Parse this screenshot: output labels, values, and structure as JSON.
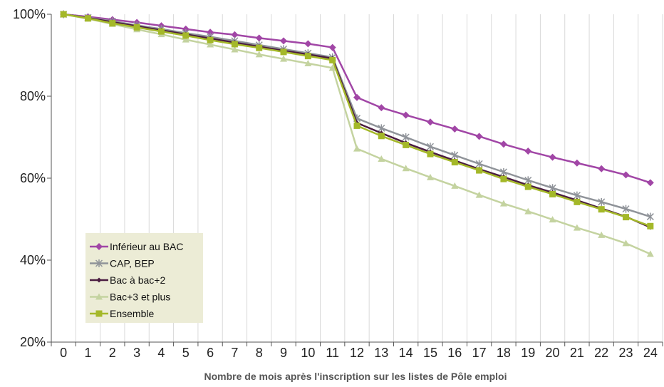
{
  "chart_data": {
    "type": "line",
    "title": "",
    "xlabel": "Nombre de mois après l'inscription sur les listes de Pôle emploi",
    "ylabel": "",
    "x": [
      0,
      1,
      2,
      3,
      4,
      5,
      6,
      7,
      8,
      9,
      10,
      11,
      12,
      13,
      14,
      15,
      16,
      17,
      18,
      19,
      20,
      21,
      22,
      23,
      24
    ],
    "ylim": [
      20,
      100
    ],
    "yticks": [
      {
        "value": 20,
        "label": "20%"
      },
      {
        "value": 40,
        "label": "40%"
      },
      {
        "value": 60,
        "label": "60%"
      },
      {
        "value": 80,
        "label": "80%"
      },
      {
        "value": 100,
        "label": "100%"
      }
    ],
    "grid": "vertical",
    "legend_position": "bottom-left",
    "series": [
      {
        "name": "Inférieur au BAC",
        "color": "#a146a6",
        "marker": "diamond",
        "values": [
          100,
          99.4,
          98.7,
          98.0,
          97.2,
          96.4,
          95.6,
          95.0,
          94.2,
          93.5,
          92.8,
          91.9,
          79.7,
          77.2,
          75.4,
          73.7,
          72.0,
          70.2,
          68.3,
          66.6,
          65.1,
          63.7,
          62.3,
          60.8,
          58.9
        ]
      },
      {
        "name": "CAP, BEP",
        "color": "#8f9399",
        "marker": "star",
        "values": [
          100,
          99.2,
          98.3,
          97.3,
          96.4,
          95.4,
          94.5,
          93.5,
          92.5,
          91.5,
          90.5,
          89.5,
          74.6,
          72.2,
          70.0,
          67.7,
          65.6,
          63.5,
          61.5,
          59.5,
          57.6,
          55.8,
          54.2,
          52.5,
          50.6
        ]
      },
      {
        "name": "Bac à bac+2",
        "color": "#4a1c40",
        "marker": "diamond-small",
        "values": [
          100,
          99.1,
          98.1,
          97.1,
          96.1,
          95.1,
          94.1,
          93.1,
          92.1,
          91.1,
          90.2,
          89.2,
          73.5,
          71.0,
          68.6,
          66.4,
          64.3,
          62.2,
          60.3,
          58.3,
          56.5,
          54.6,
          52.6,
          50.6,
          48.0
        ]
      },
      {
        "name": "Bac+3 et plus",
        "color": "#c4d3a0",
        "marker": "triangle",
        "values": [
          100,
          98.9,
          97.6,
          96.3,
          95.1,
          93.8,
          92.6,
          91.4,
          90.2,
          89.1,
          88.0,
          86.9,
          67.2,
          64.7,
          62.4,
          60.2,
          58.1,
          55.9,
          53.8,
          51.9,
          49.9,
          47.9,
          46.1,
          44.1,
          41.5
        ]
      },
      {
        "name": "Ensemble",
        "color": "#a4b829",
        "marker": "square",
        "values": [
          100,
          99.0,
          97.8,
          96.8,
          95.8,
          94.8,
          93.7,
          92.7,
          91.8,
          90.8,
          89.8,
          88.8,
          72.8,
          70.3,
          68.1,
          65.9,
          63.9,
          61.9,
          59.8,
          57.9,
          56.1,
          54.2,
          52.4,
          50.5,
          48.3
        ]
      }
    ]
  }
}
